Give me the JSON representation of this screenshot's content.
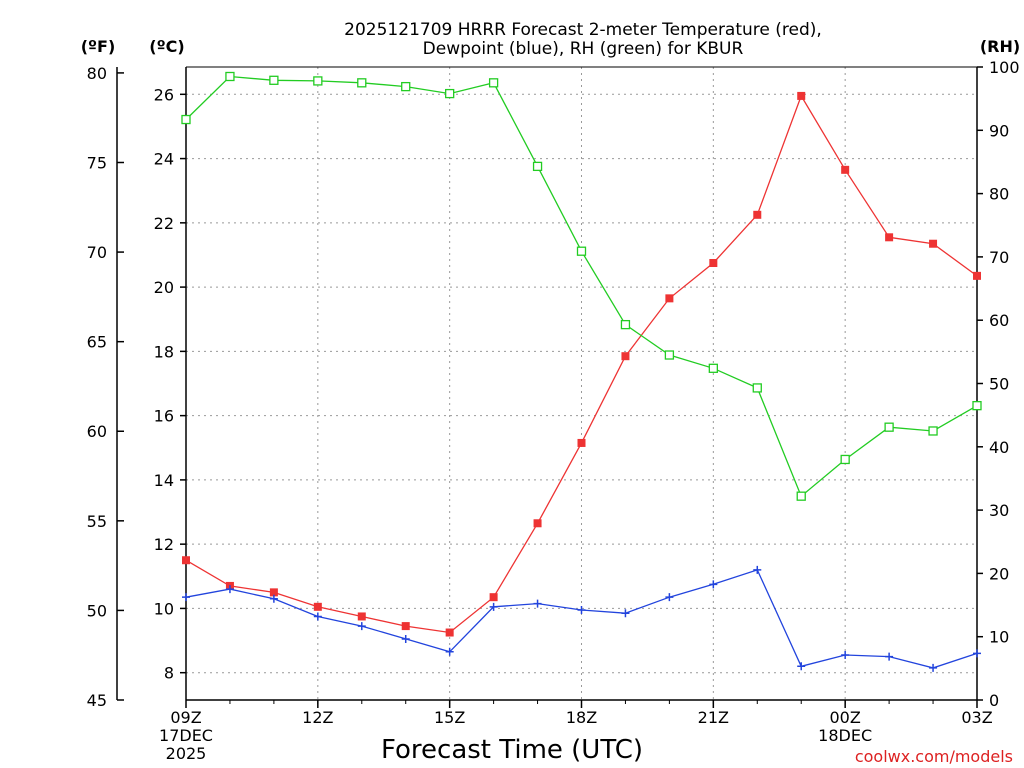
{
  "chart_data": {
    "type": "line",
    "title_lines": [
      "2025121709 HRRR Forecast 2-meter Temperature (red),",
      "Dewpoint (blue), RH (green) for KBUR"
    ],
    "units": {
      "fahrenheit": "(ºF)",
      "celsius": "(ºC)",
      "rh": "(RH)"
    },
    "xlabel": "Forecast Time (UTC)",
    "credit": "coolwx.com/models",
    "x_hours": [
      0,
      1,
      2,
      3,
      4,
      5,
      6,
      7,
      8,
      9,
      10,
      11,
      12,
      13,
      14,
      15,
      16,
      17,
      18
    ],
    "x_ticks": [
      {
        "hour": 0,
        "lines": [
          "09Z",
          "17DEC",
          "2025"
        ]
      },
      {
        "hour": 3,
        "lines": [
          "12Z"
        ]
      },
      {
        "hour": 6,
        "lines": [
          "15Z"
        ]
      },
      {
        "hour": 9,
        "lines": [
          "18Z"
        ]
      },
      {
        "hour": 12,
        "lines": [
          "21Z"
        ]
      },
      {
        "hour": 15,
        "lines": [
          "00Z",
          "18DEC"
        ]
      },
      {
        "hour": 18,
        "lines": [
          "03Z"
        ]
      }
    ],
    "celsius_range": [
      7.15,
      26.85
    ],
    "celsius_ticks": [
      "8",
      "10",
      "12",
      "14",
      "16",
      "18",
      "20",
      "22",
      "24",
      "26"
    ],
    "fahrenheit_range": [
      45,
      80.33
    ],
    "fahrenheit_ticks": [
      "45",
      "50",
      "55",
      "60",
      "65",
      "70",
      "75",
      "80"
    ],
    "rh_range": [
      0,
      100
    ],
    "rh_ticks": [
      "0",
      "10",
      "20",
      "30",
      "40",
      "50",
      "60",
      "70",
      "80",
      "90",
      "100"
    ],
    "series": [
      {
        "name": "Temperature",
        "axis": "celsius",
        "color": "#ee3333",
        "marker": "filled-square",
        "values": [
          11.5,
          10.7,
          10.5,
          10.05,
          9.75,
          9.45,
          9.25,
          10.35,
          12.65,
          15.15,
          17.85,
          19.65,
          20.75,
          22.25,
          25.95,
          23.65,
          21.55,
          21.35,
          20.35
        ]
      },
      {
        "name": "Dewpoint",
        "axis": "celsius",
        "color": "#2244dd",
        "marker": "plus",
        "values": [
          10.35,
          10.6,
          10.3,
          9.75,
          9.45,
          9.05,
          8.65,
          10.05,
          10.15,
          9.95,
          9.85,
          10.35,
          10.75,
          11.2,
          8.2,
          8.55,
          8.5,
          8.15,
          8.6
        ]
      },
      {
        "name": "RH",
        "axis": "rh",
        "color": "#22cc22",
        "marker": "open-square",
        "values": [
          91.7,
          98.5,
          97.9,
          97.8,
          97.5,
          96.9,
          95.8,
          97.5,
          84.3,
          70.9,
          59.3,
          54.5,
          52.4,
          49.3,
          32.2,
          38.0,
          43.1,
          42.5,
          46.5
        ]
      }
    ]
  }
}
